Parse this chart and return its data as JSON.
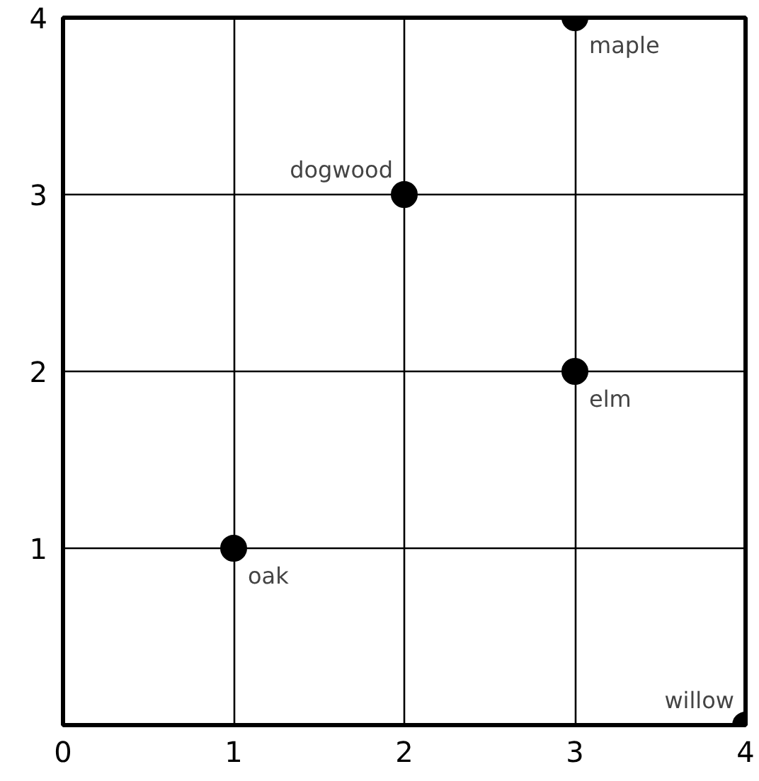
{
  "chart_data": {
    "type": "scatter",
    "x": [
      1,
      2,
      3,
      3,
      4
    ],
    "values": [
      1,
      3,
      2,
      4,
      0
    ],
    "color": "#000000",
    "marker": "circle",
    "xlim": [
      0,
      4
    ],
    "ylim": [
      0,
      4
    ],
    "xticks": [
      0,
      1,
      2,
      3,
      4
    ],
    "yticks": [
      {
        "value": 0,
        "label": null
      },
      1,
      2,
      3,
      4
    ],
    "grid": true,
    "annotations": [
      {
        "text": "oak",
        "x": 1,
        "y": 1
      },
      {
        "text": "dogwood",
        "x": 2,
        "y": 3
      },
      {
        "text": "elm",
        "x": 3,
        "y": 2
      },
      {
        "text": "maple",
        "x": 3,
        "y": 4
      },
      {
        "text": "willow",
        "x": 4,
        "y": 0
      }
    ]
  }
}
